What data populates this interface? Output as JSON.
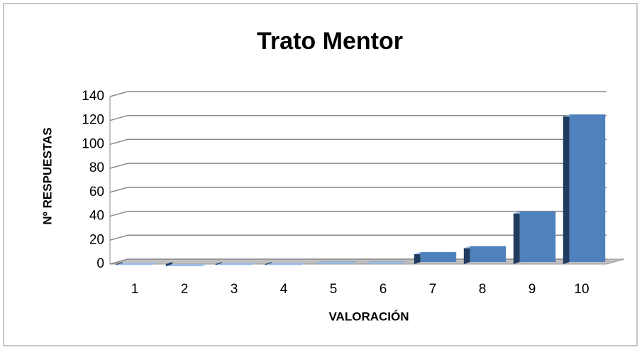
{
  "chart_data": {
    "type": "bar",
    "title": "Trato Mentor",
    "x_label": "VALORACIÓN",
    "y_label": "Nº RESPUESTAS",
    "categories": [
      "1",
      "2",
      "3",
      "4",
      "5",
      "6",
      "7",
      "8",
      "9",
      "10"
    ],
    "values": [
      1,
      0,
      1,
      1,
      2,
      2,
      10,
      15,
      44,
      125
    ],
    "color": "#4f81bd",
    "ylim": [
      0,
      140
    ],
    "yticks": [
      0,
      20,
      40,
      60,
      80,
      100,
      120,
      140
    ],
    "grid": true
  }
}
